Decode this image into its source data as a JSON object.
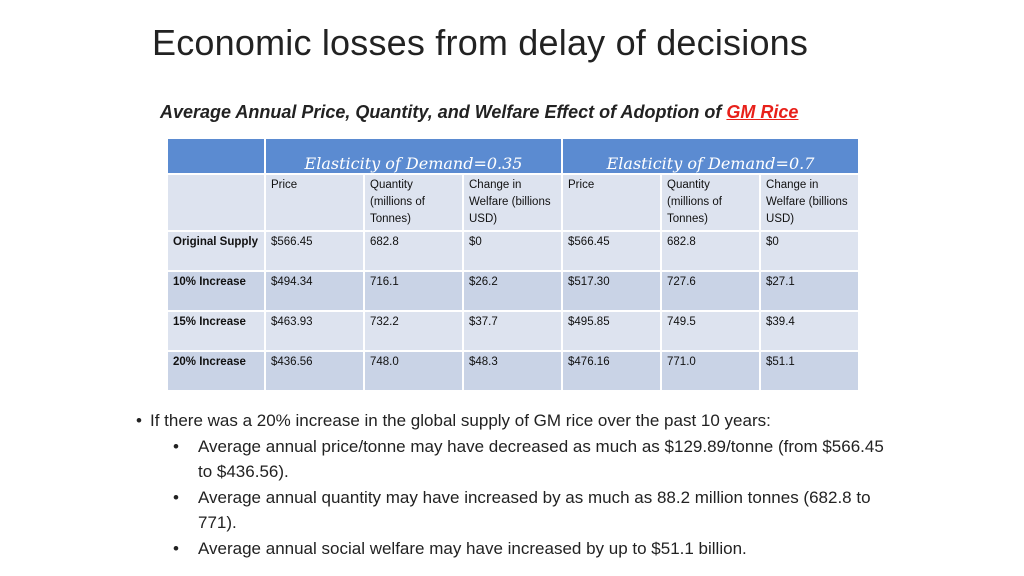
{
  "slide": {
    "title": "Economic losses from delay of decisions",
    "subtitle_prefix": "Average Annual Price, Quantity, and Welfare Effect of Adoption of ",
    "subtitle_highlight": "GM Rice"
  },
  "table": {
    "group_headers": [
      "Elasticity of Demand=0.35",
      "Elasticity of Demand=0.7"
    ],
    "column_headers": [
      "Price",
      "Quantity (millions of Tonnes)",
      "Change in Welfare (billions USD)",
      "Price",
      "Quantity (millions of Tonnes)",
      "Change in Welfare (billions USD)"
    ],
    "rows": [
      {
        "label": "Original Supply",
        "values": [
          "$566.45",
          "682.8",
          "$0",
          "$566.45",
          "682.8",
          "$0"
        ]
      },
      {
        "label": "10% Increase",
        "values": [
          "$494.34",
          "716.1",
          "$26.2",
          "$517.30",
          "727.6",
          "$27.1"
        ]
      },
      {
        "label": "15% Increase",
        "values": [
          "$463.93",
          "732.2",
          "$37.7",
          "$495.85",
          "749.5",
          "$39.4"
        ]
      },
      {
        "label": "20% Increase",
        "values": [
          "$436.56",
          "748.0",
          "$48.3",
          "$476.16",
          "771.0",
          "$51.1"
        ]
      }
    ]
  },
  "bullets": {
    "main": "If there was a 20% increase in the global supply of GM rice over the past 10 years:",
    "sub": [
      "Average annual price/tonne may have decreased as much as $129.89/tonne (from $566.45 to $436.56).",
      "Average annual quantity may have increased by as much as 88.2 million tonnes (682.8 to 771).",
      "Average annual social welfare may have increased by up to $51.1 billion."
    ]
  }
}
